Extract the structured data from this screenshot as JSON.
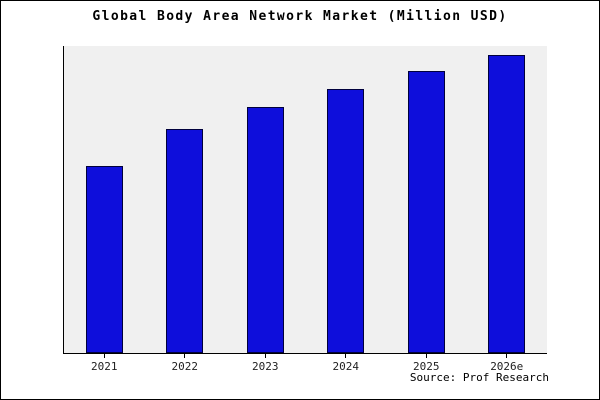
{
  "chart_data": {
    "type": "bar",
    "title": "Global Body Area Network Market (Million USD)",
    "categories": [
      "2021",
      "2022",
      "2023",
      "2024",
      "2025",
      "2026e"
    ],
    "values": [
      61,
      73,
      80,
      86,
      92,
      97
    ],
    "values_note": "no y-axis scale shown; values estimated as percent of plot height",
    "xlabel": "",
    "ylabel": "",
    "ylim": [
      0,
      100
    ],
    "grid": false,
    "legend_position": "none",
    "source": "Source: Prof Research"
  },
  "colors": {
    "bar_fill": "#0e0edb",
    "bar_border": "#00003c",
    "plot_bg": "#f0f0f0",
    "axis": "#000000",
    "title_text": "#000000",
    "tick_label": "#222222"
  }
}
